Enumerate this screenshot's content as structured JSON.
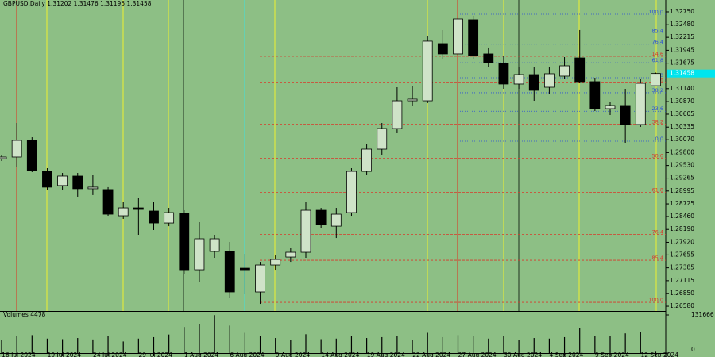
{
  "chart_data": {
    "type": "candlestick",
    "title": "GBPUSD,Daily",
    "background": "#8dbf85",
    "bull_color": "#cfe3c8",
    "bear_color": "#000000",
    "categories": [
      null,
      "16 Jul 2024",
      null,
      null,
      "19 Jul 2024",
      null,
      null,
      "24 Jul 2024",
      null,
      null,
      "29 Jul 2024",
      null,
      null,
      "1 Aug 2024",
      null,
      null,
      "6 Aug 2024",
      null,
      null,
      "9 Aug 2024",
      null,
      null,
      "14 Aug 2024",
      null,
      null,
      "19 Aug 2024",
      null,
      null,
      "22 Aug 2024",
      null,
      null,
      "27 Aug 2024",
      null,
      null,
      "30 Aug 2024",
      null,
      null,
      "4 Sep 2024",
      null,
      null,
      "9 Sep 2024",
      null,
      null,
      "12 Sep 2024"
    ],
    "open": [
      1.29674,
      1.29707,
      1.30056,
      1.29407,
      1.2911,
      1.29308,
      1.29043,
      1.29026,
      1.28476,
      1.28642,
      1.28576,
      1.28326,
      1.28526,
      1.27345,
      1.27728,
      1.27728,
      1.27378,
      1.2688,
      1.27445,
      1.27611,
      1.27711,
      1.28592,
      1.28259,
      1.28542,
      1.29407,
      1.29873,
      1.30305,
      1.30887,
      1.30887,
      1.32085,
      1.31869,
      1.32584,
      1.31869,
      1.31669,
      1.31237,
      1.31436,
      1.3117,
      1.31403,
      1.31785,
      1.31287,
      1.30721,
      1.30788,
      1.30389,
      1.31202
    ],
    "high": [
      1.29757,
      1.30422,
      1.30122,
      1.29474,
      1.29374,
      1.29374,
      1.29341,
      1.29076,
      1.28759,
      1.28843,
      1.28759,
      1.28642,
      1.28592,
      1.28343,
      1.28077,
      1.27927,
      1.27678,
      1.27511,
      1.27644,
      1.27811,
      1.28776,
      1.28642,
      1.28642,
      1.29474,
      1.29973,
      1.30422,
      1.3117,
      1.31203,
      1.32251,
      1.32368,
      1.32733,
      1.32667,
      1.32002,
      1.31835,
      1.31586,
      1.31586,
      1.31586,
      1.31802,
      1.32368,
      1.3137,
      1.30871,
      1.31137,
      1.31336,
      1.31476
    ],
    "low": [
      1.29624,
      1.29507,
      1.29391,
      1.29009,
      1.29009,
      1.28876,
      1.2891,
      1.28476,
      1.2841,
      1.28077,
      1.28177,
      1.28259,
      1.27262,
      1.27096,
      1.27595,
      1.26763,
      1.26846,
      1.2663,
      1.27345,
      1.27511,
      1.27595,
      1.2821,
      1.2801,
      1.28476,
      1.29341,
      1.29757,
      1.30206,
      1.30788,
      1.30838,
      1.31752,
      1.31835,
      1.31752,
      1.31586,
      1.31137,
      1.31137,
      1.30887,
      1.31037,
      1.31336,
      1.31253,
      1.30671,
      1.30588,
      1.30006,
      1.30339,
      1.31195
    ],
    "close": [
      1.29707,
      1.30056,
      1.29424,
      1.29076,
      1.29308,
      1.29043,
      1.29076,
      1.28509,
      1.28642,
      1.28609,
      1.28326,
      1.28542,
      1.27345,
      1.27994,
      1.27994,
      1.2688,
      1.27345,
      1.27445,
      1.27561,
      1.27711,
      1.28592,
      1.28293,
      1.28509,
      1.29407,
      1.29873,
      1.30305,
      1.30887,
      1.30921,
      1.32135,
      1.31869,
      1.326,
      1.31835,
      1.31686,
      1.31237,
      1.31436,
      1.31104,
      1.31453,
      1.31619,
      1.31287,
      1.30721,
      1.30788,
      1.30389,
      1.31253,
      1.31458
    ],
    "ylim": [
      1.26481,
      1.32999
    ],
    "yticks": [
      {
        "value": 1.3275,
        "label": "1.32750"
      },
      {
        "value": 1.3248,
        "label": "1.32480"
      },
      1.32215,
      1.31945,
      1.31675,
      {
        "value": 1.3114,
        "label": "1.31140"
      },
      {
        "value": 1.3087,
        "label": "1.30870"
      },
      1.30605,
      1.30335,
      {
        "value": 1.3007,
        "label": "1.30070"
      },
      {
        "value": 1.298,
        "label": "1.29800"
      },
      {
        "value": 1.2953,
        "label": "1.29530"
      },
      1.29265,
      1.28995,
      1.28725,
      {
        "value": 1.2846,
        "label": "1.28460"
      },
      {
        "value": 1.2819,
        "label": "1.28190"
      },
      {
        "value": 1.2792,
        "label": "1.27920"
      },
      1.27655,
      1.27385,
      1.27115,
      {
        "value": 1.2685,
        "label": "1.26850"
      },
      {
        "value": 1.2658,
        "label": "1.26580"
      }
    ],
    "current_price_color": "#00e5ee",
    "fib_levels": [
      {
        "color": "#2b4fd8",
        "levels": [
          {
            "label": "0.0",
            "value": 1.30039
          },
          {
            "label": "23.6",
            "value": 1.30667
          },
          {
            "label": "38.2",
            "value": 1.31055
          },
          {
            "label": "50.0",
            "value": 1.3137
          },
          {
            "label": "61.8",
            "value": 1.31683
          },
          {
            "label": "76.4",
            "value": 1.32072
          },
          {
            "label": "85.4",
            "value": 1.32311
          },
          {
            "label": "100.0",
            "value": 1.327
          }
        ]
      },
      {
        "color": "#d83a2b",
        "levels": [
          {
            "label": "14.6",
            "value": 1.31819
          },
          {
            "label": "23.6",
            "value": 1.31275
          },
          {
            "label": "38.2",
            "value": 1.30394
          },
          {
            "label": "50.0",
            "value": 1.29682
          },
          {
            "label": "61.8",
            "value": 1.28969
          },
          {
            "label": "76.4",
            "value": 1.28088
          },
          {
            "label": "85.4",
            "value": 1.27544
          },
          {
            "label": "100.0",
            "value": 1.26663
          }
        ]
      }
    ],
    "volume": {
      "title": "Volumes",
      "values": [
        45000,
        60000,
        62000,
        50000,
        48000,
        52000,
        47000,
        58000,
        40000,
        50000,
        55000,
        64000,
        90000,
        100000,
        131000,
        95000,
        70000,
        60000,
        52000,
        45000,
        65000,
        48000,
        50000,
        60000,
        52000,
        55000,
        58000,
        46000,
        70000,
        55000,
        62000,
        60000,
        50000,
        58000,
        45000,
        52000,
        50000,
        55000,
        85000,
        60000,
        58000,
        68000,
        72000,
        4478
      ],
      "ylim": [
        0,
        131666
      ],
      "yticks": [
        131666,
        0
      ]
    }
  }
}
